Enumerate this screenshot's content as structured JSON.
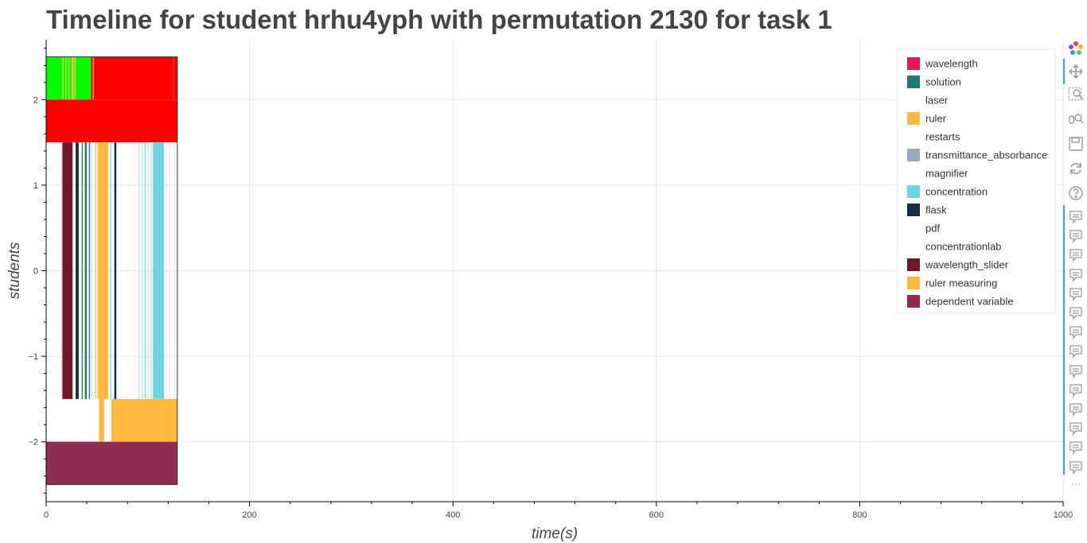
{
  "title": "Timeline for student hrhu4yph with permutation 2130 for task 1",
  "chart_data": {
    "type": "timeline",
    "title": "Timeline for student hrhu4yph with permutation 2130 for task 1",
    "xlabel": "time(s)",
    "ylabel": "students",
    "xlim": [
      0,
      1000
    ],
    "ylim": [
      -2.7,
      2.7
    ],
    "x_ticks": [
      0,
      200,
      400,
      600,
      800,
      1000
    ],
    "y_ticks": [
      -2,
      -1,
      0,
      1,
      2
    ],
    "y_tick_labels": [
      "−2",
      "−1",
      "0",
      "1",
      "2"
    ],
    "grid": true,
    "legend_position": "top-right",
    "legend": [
      {
        "label": "wavelength",
        "color": "#e0185a",
        "swatch": true
      },
      {
        "label": "solution",
        "color": "#1f7a72",
        "swatch": true
      },
      {
        "label": "laser",
        "color": "#ffffff",
        "swatch": false
      },
      {
        "label": "ruler",
        "color": "#ffb940",
        "swatch": true
      },
      {
        "label": "restarts",
        "color": "#ffffff",
        "swatch": false
      },
      {
        "label": "transmittance_absorbance",
        "color": "#9aa9bb",
        "swatch": true
      },
      {
        "label": "magnifier",
        "color": "#ffffff",
        "swatch": false
      },
      {
        "label": "concentration",
        "color": "#70d3e0",
        "swatch": true
      },
      {
        "label": "flask",
        "color": "#1a2b40",
        "swatch": true
      },
      {
        "label": "pdf",
        "color": "#ffffff",
        "swatch": false
      },
      {
        "label": "concentrationlab",
        "color": "#ffffff",
        "swatch": false
      },
      {
        "label": "wavelength_slider",
        "color": "#6b1a2c",
        "swatch": true
      },
      {
        "label": "ruler measuring",
        "color": "#ffb940",
        "swatch": true
      },
      {
        "label": "dependent variable",
        "color": "#922b52",
        "swatch": true
      }
    ],
    "rows": [
      {
        "y_range": [
          2.0,
          2.5
        ],
        "segments": [
          {
            "x0": 0,
            "x1": 16,
            "color": "#00ff00"
          },
          {
            "x0": 16,
            "x1": 17,
            "color": "#ffb940"
          },
          {
            "x0": 17,
            "x1": 19,
            "color": "#00ff00"
          },
          {
            "x0": 19,
            "x1": 20,
            "color": "#ffb940"
          },
          {
            "x0": 20,
            "x1": 22,
            "color": "#00ff00"
          },
          {
            "x0": 22,
            "x1": 23,
            "color": "#ffb940"
          },
          {
            "x0": 23,
            "x1": 25,
            "color": "#00ff00"
          },
          {
            "x0": 25,
            "x1": 27,
            "color": "#ffb940"
          },
          {
            "x0": 27,
            "x1": 28,
            "color": "#00ff00"
          },
          {
            "x0": 28,
            "x1": 29,
            "color": "#ffb940"
          },
          {
            "x0": 29,
            "x1": 36,
            "color": "#00ff00"
          },
          {
            "x0": 36,
            "x1": 44,
            "color": "#00ff00"
          },
          {
            "x0": 44,
            "x1": 46,
            "color": "#ff0000"
          },
          {
            "x0": 46,
            "x1": 47,
            "color": "#ffb940"
          },
          {
            "x0": 47,
            "x1": 125,
            "color": "#ff0000"
          },
          {
            "x0": 125,
            "x1": 126,
            "color": "#cc2222"
          },
          {
            "x0": 126,
            "x1": 129,
            "color": "#ff0000"
          }
        ]
      },
      {
        "y_range": [
          1.5,
          2.0
        ],
        "segments": [
          {
            "x0": 0,
            "x1": 129,
            "color": "#ff0000"
          }
        ]
      },
      {
        "y_range": [
          -1.5,
          1.5
        ],
        "segments": [
          {
            "x0": 15,
            "x1": 16,
            "color": "#ffc8d0"
          },
          {
            "x0": 16,
            "x1": 26,
            "color": "#6b1a2c"
          },
          {
            "x0": 29,
            "x1": 32,
            "color": "#1a2b40"
          },
          {
            "x0": 35,
            "x1": 36,
            "color": "#1f7a72"
          },
          {
            "x0": 38,
            "x1": 40,
            "color": "#1f7a72"
          },
          {
            "x0": 42,
            "x1": 43,
            "color": "#1f7a72"
          },
          {
            "x0": 44,
            "x1": 45,
            "color": "#b0e8ee"
          },
          {
            "x0": 48,
            "x1": 49,
            "color": "#ffb940"
          },
          {
            "x0": 50,
            "x1": 51,
            "color": "#ffe0a8"
          },
          {
            "x0": 51,
            "x1": 61,
            "color": "#ffb940"
          },
          {
            "x0": 63,
            "x1": 64,
            "color": "#70d3e0"
          },
          {
            "x0": 67,
            "x1": 69,
            "color": "#1a2b40"
          },
          {
            "x0": 91,
            "x1": 92,
            "color": "#b0e8ee"
          },
          {
            "x0": 94,
            "x1": 95,
            "color": "#b0e8ee"
          },
          {
            "x0": 97,
            "x1": 98,
            "color": "#70d3e0"
          },
          {
            "x0": 100,
            "x1": 101,
            "color": "#b0e8ee"
          },
          {
            "x0": 103,
            "x1": 104,
            "color": "#b0e8ee"
          },
          {
            "x0": 105,
            "x1": 116,
            "color": "#70d3e0"
          },
          {
            "x0": 118,
            "x1": 119,
            "color": "#ffe0e6"
          },
          {
            "x0": 121,
            "x1": 122,
            "color": "#ffe0e6"
          },
          {
            "x0": 126,
            "x1": 127,
            "color": "#ffe0e6"
          }
        ]
      },
      {
        "y_range": [
          -2.0,
          -1.5
        ],
        "segments": [
          {
            "x0": 52,
            "x1": 57,
            "color": "#ffb940"
          },
          {
            "x0": 64,
            "x1": 129,
            "color": "#ffb940"
          }
        ]
      },
      {
        "y_range": [
          -2.5,
          -2.0
        ],
        "segments": [
          {
            "x0": 0,
            "x1": 129,
            "color": "#922b52"
          }
        ]
      }
    ],
    "outline": {
      "x0": 0,
      "x1": 129,
      "y0": -2.5,
      "y1": 2.5
    }
  },
  "toolbar": {
    "tools": [
      {
        "icon": "bokeh-logo-icon"
      },
      {
        "icon": "pan-tool-icon"
      },
      {
        "icon": "box-zoom-icon"
      },
      {
        "icon": "wheel-zoom-icon"
      },
      {
        "icon": "save-icon"
      },
      {
        "icon": "reset-icon"
      },
      {
        "icon": "help-icon"
      }
    ],
    "hover_tool_count": 14,
    "more_label": "···"
  },
  "colors": {
    "title": "#444444",
    "grid": "#e5e5e5",
    "toolbar_active": "#26aae1"
  }
}
